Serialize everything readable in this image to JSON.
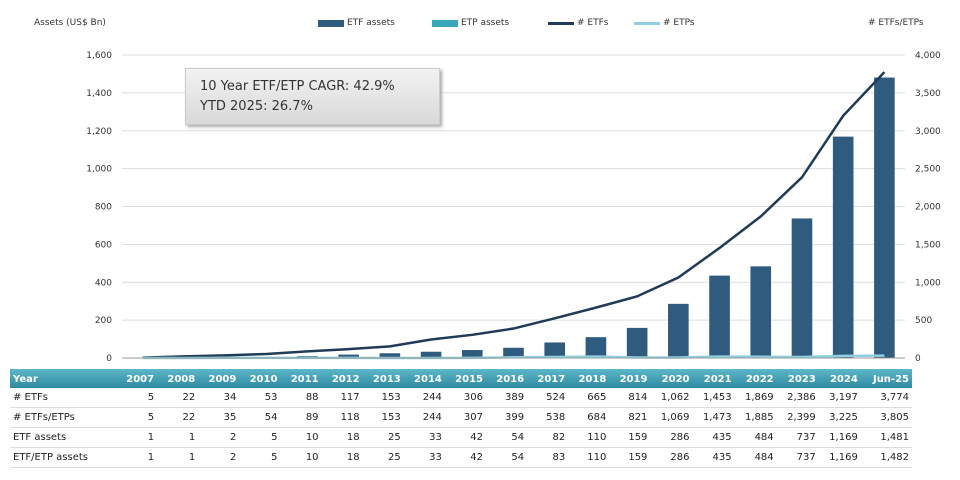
{
  "chart_data": {
    "type": "bar+line",
    "ylabel_left": "Assets (US$ Bn)",
    "ylabel_right": "# ETFs/ETPs",
    "ylim_left": [
      0,
      1600
    ],
    "yticks_left": [
      "0",
      "200",
      "400",
      "600",
      "800",
      "1,000",
      "1,200",
      "1,400",
      "1,600"
    ],
    "ylim_right": [
      0,
      4000
    ],
    "yticks_right": [
      "0",
      "500",
      "1,000",
      "1,500",
      "2,000",
      "2,500",
      "3,000",
      "3,500",
      "4,000"
    ],
    "grid": true,
    "legend": "top-center",
    "categories": [
      "2007",
      "2008",
      "2009",
      "2010",
      "2011",
      "2012",
      "2013",
      "2014",
      "2015",
      "2016",
      "2017",
      "2018",
      "2019",
      "2020",
      "2021",
      "2022",
      "2023",
      "2024",
      "Jun-25"
    ],
    "series": [
      {
        "name": "ETF assets",
        "type": "bar",
        "axis": "left",
        "color": "#2f5b7f",
        "values": [
          1,
          1,
          2,
          5,
          10,
          18,
          25,
          33,
          42,
          54,
          82,
          110,
          159,
          286,
          435,
          484,
          737,
          1169,
          1481
        ]
      },
      {
        "name": "ETP assets",
        "type": "bar",
        "axis": "left",
        "color": "#3aa6b9",
        "values": [
          0,
          0,
          0,
          0,
          0,
          0,
          0,
          0,
          0,
          0,
          1,
          0,
          0,
          0,
          0,
          0,
          0,
          0,
          1
        ]
      },
      {
        "name": "# ETFs",
        "type": "line",
        "axis": "right",
        "color": "#1f3b57",
        "values": [
          5,
          22,
          34,
          53,
          88,
          117,
          153,
          244,
          306,
          389,
          524,
          665,
          814,
          1062,
          1453,
          1869,
          2386,
          3197,
          3774
        ]
      },
      {
        "name": "# ETPs",
        "type": "line",
        "axis": "right",
        "color": "#8fd0e0",
        "values": [
          0,
          0,
          1,
          1,
          1,
          1,
          0,
          0,
          1,
          10,
          14,
          19,
          7,
          7,
          20,
          16,
          13,
          28,
          31
        ]
      }
    ]
  },
  "annotation": {
    "line1": "10 Year ETF/ETP CAGR: 42.9%",
    "line2": "YTD 2025: 26.7%"
  },
  "table": {
    "header": [
      "Year",
      "2007",
      "2008",
      "2009",
      "2010",
      "2011",
      "2012",
      "2013",
      "2014",
      "2015",
      "2016",
      "2017",
      "2018",
      "2019",
      "2020",
      "2021",
      "2022",
      "2023",
      "2024",
      "Jun-25"
    ],
    "rows": [
      [
        "# ETFs",
        "5",
        "22",
        "34",
        "53",
        "88",
        "117",
        "153",
        "244",
        "306",
        "389",
        "524",
        "665",
        "814",
        "1,062",
        "1,453",
        "1,869",
        "2,386",
        "3,197",
        "3,774"
      ],
      [
        "# ETFs/ETPs",
        "5",
        "22",
        "35",
        "54",
        "89",
        "118",
        "153",
        "244",
        "307",
        "399",
        "538",
        "684",
        "821",
        "1,069",
        "1,473",
        "1,885",
        "2,399",
        "3,225",
        "3,805"
      ],
      [
        "ETF assets",
        "1",
        "1",
        "2",
        "5",
        "10",
        "18",
        "25",
        "33",
        "42",
        "54",
        "82",
        "110",
        "159",
        "286",
        "435",
        "484",
        "737",
        "1,169",
        "1,481"
      ],
      [
        "ETF/ETP assets",
        "1",
        "1",
        "2",
        "5",
        "10",
        "18",
        "25",
        "33",
        "42",
        "54",
        "83",
        "110",
        "159",
        "286",
        "435",
        "484",
        "737",
        "1,169",
        "1,482"
      ]
    ]
  }
}
